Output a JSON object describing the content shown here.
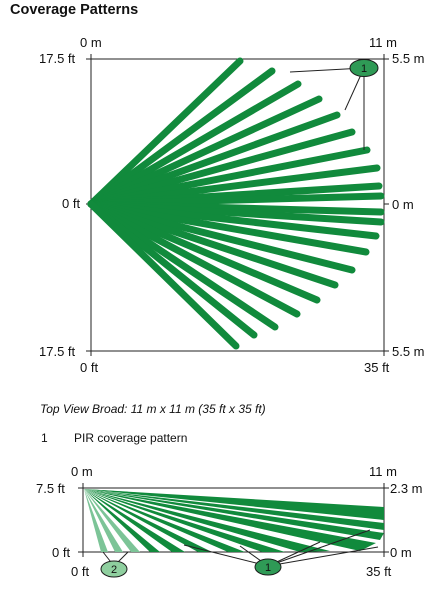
{
  "title": "Coverage Patterns",
  "top_view": {
    "label_top_left": "0 m",
    "label_top_right": "11 m",
    "label_left_top": "17.5 ft",
    "label_left_mid": "0 ft",
    "label_left_bottom": "17.5 ft",
    "label_right_top": "5.5 m",
    "label_right_mid": "0 m",
    "label_right_bottom": "5.5 m",
    "label_bottom_left": "0 ft",
    "label_bottom_right": "35 ft",
    "callout": "1"
  },
  "caption": "Top View Broad: 11 m x 11 m (35 ft x 35 ft)",
  "legend": {
    "number": "1",
    "text": "PIR coverage pattern"
  },
  "side_view": {
    "label_top_left": "0 m",
    "label_top_right": "11 m",
    "label_left_top": "7.5 ft",
    "label_left_bottom": "0 ft",
    "label_right_top": "2.3 m",
    "label_right_bottom": "0 m",
    "label_bottom_left": "0 ft",
    "label_bottom_right": "35 ft",
    "callout_1": "1",
    "callout_2": "2"
  },
  "colors": {
    "zone": "#118a3c",
    "zone_light": "#7cc497",
    "badge": "#2f9a56",
    "badge_light": "#8fcf9f"
  }
}
